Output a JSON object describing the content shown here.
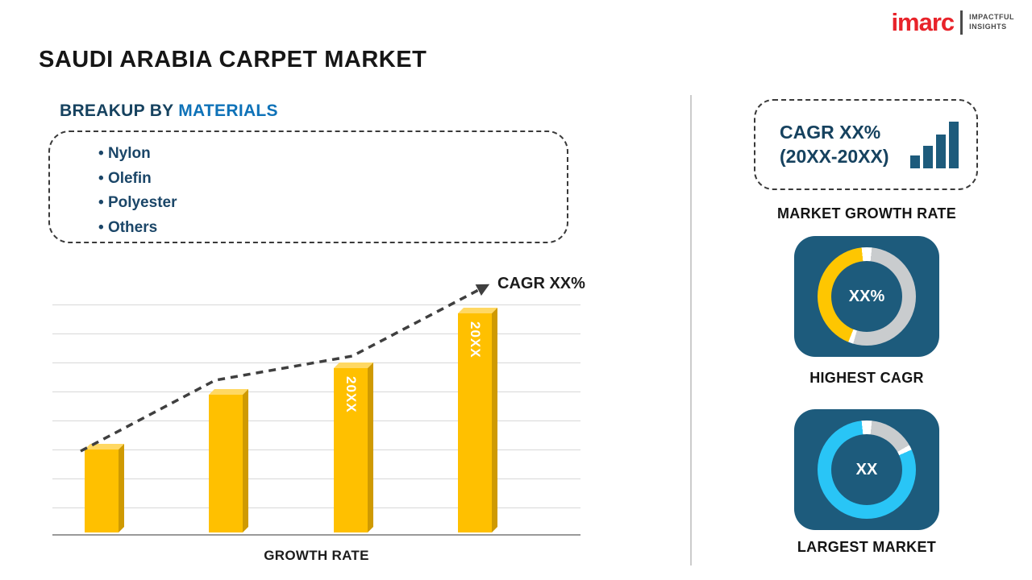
{
  "page": {
    "title": "SAUDI ARABIA CARPET MARKET"
  },
  "logo": {
    "brand": "imarc",
    "tagline1": "IMPACTFUL",
    "tagline2": "INSIGHTS",
    "brand_color": "#e8232a"
  },
  "breakup": {
    "heading_prefix": "BREAKUP BY ",
    "heading_highlight": "MATERIALS",
    "items": [
      "Nylon",
      "Olefin",
      "Polyester",
      "Others"
    ]
  },
  "chart_data": {
    "type": "bar",
    "title": "",
    "xlabel": "GROWTH RATE",
    "ylabel": "",
    "categories": [
      "",
      "",
      "20XX",
      "20XX"
    ],
    "values": [
      38,
      63,
      75,
      100
    ],
    "value_note": "placeholder bars with unlabeled axis; values are relative heights (max = 100)",
    "trend_label": "CAGR XX%",
    "trend_style": "dashed rising arrow over bars",
    "bar_color": "#FFC000",
    "grid": true,
    "legend": false
  },
  "right_panel": {
    "growth_card": {
      "line1": "CAGR XX%",
      "line2": "(20XX-20XX)",
      "caption": "MARKET GROWTH RATE",
      "icon": "bar-chart-icon"
    },
    "highest_cagr": {
      "value": "XX%",
      "caption": "HIGHEST CAGR",
      "segments": [
        {
          "color": "#ffffff",
          "from": 0,
          "to": 6
        },
        {
          "color": "#c9ccce",
          "from": 6,
          "to": 196
        },
        {
          "color": "#ffffff",
          "from": 196,
          "to": 202
        },
        {
          "color": "#fec601",
          "from": 202,
          "to": 354
        },
        {
          "color": "#ffffff",
          "from": 354,
          "to": 360
        }
      ]
    },
    "largest_market": {
      "value": "XX",
      "caption": "LARGEST MARKET",
      "segments": [
        {
          "color": "#ffffff",
          "from": 0,
          "to": 6
        },
        {
          "color": "#c9ccce",
          "from": 6,
          "to": 60
        },
        {
          "color": "#ffffff",
          "from": 60,
          "to": 66
        },
        {
          "color": "#29c5f6",
          "from": 66,
          "to": 354
        },
        {
          "color": "#ffffff",
          "from": 354,
          "to": 360
        }
      ]
    },
    "tile_color": "#1d5b7c"
  },
  "colors": {
    "navy_text": "#16425f",
    "blue_highlight": "#0e72b8",
    "gold": "#FFC000",
    "cyan": "#29c5f6",
    "tile_navy": "#1d5b7c",
    "body_text": "#161616"
  }
}
